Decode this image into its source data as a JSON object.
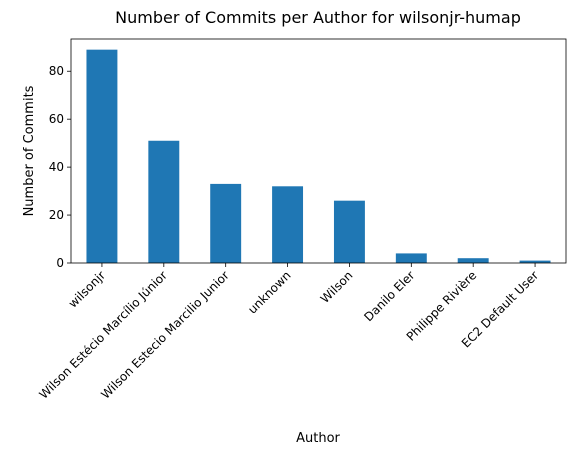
{
  "chart_data": {
    "type": "bar",
    "title": "Number of Commits per Author for wilsonjr-humap",
    "xlabel": "Author",
    "ylabel": "Number of Commits",
    "categories": [
      "wilsonjr",
      "Wilson Estécio Marcílio Júnior",
      "Wilson Estecio Marcilio Junior",
      "unknown",
      "Wilson",
      "Danilo Eler",
      "Philippe Rivière",
      "EC2 Default User"
    ],
    "values": [
      89,
      51,
      33,
      32,
      26,
      4,
      2,
      1
    ],
    "ylim": [
      0,
      93.45
    ],
    "yticks": [
      0,
      20,
      40,
      60,
      80
    ],
    "bar_color": "#1f77b4",
    "grid": false,
    "legend": "none"
  }
}
